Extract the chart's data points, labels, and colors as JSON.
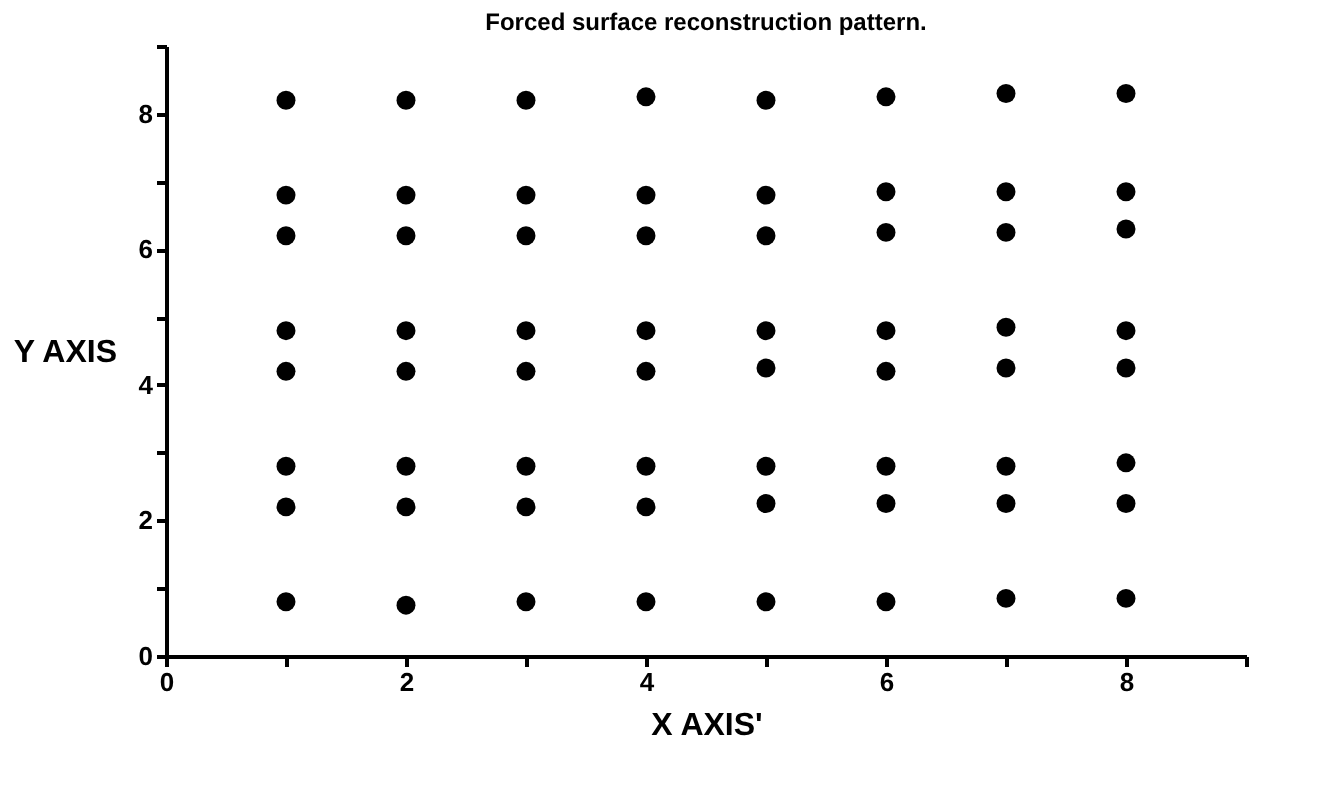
{
  "chart_data": {
    "type": "scatter",
    "title": "Forced surface reconstruction pattern.",
    "xlabel": "X AXIS'",
    "ylabel": "Y AXIS",
    "series": [
      {
        "color": "#000000",
        "x": [
          1,
          2,
          3,
          4,
          5,
          6,
          7,
          8,
          1,
          2,
          3,
          4,
          5,
          6,
          7,
          8,
          1,
          2,
          3,
          4,
          5,
          6,
          7,
          8,
          1,
          2,
          3,
          4,
          5,
          6,
          7,
          8,
          1,
          2,
          3,
          4,
          5,
          6,
          7,
          8,
          1,
          2,
          3,
          4,
          5,
          6,
          7,
          8,
          1,
          2,
          3,
          4,
          5,
          6,
          7,
          8,
          1,
          2,
          3,
          4,
          5,
          6,
          7,
          8
        ],
        "values": [
          0.8,
          0.75,
          0.8,
          0.8,
          0.8,
          0.8,
          0.85,
          0.85,
          2.2,
          2.2,
          2.2,
          2.2,
          2.25,
          2.25,
          2.25,
          2.25,
          2.8,
          2.8,
          2.8,
          2.8,
          2.8,
          2.8,
          2.8,
          2.85,
          4.2,
          4.2,
          4.2,
          4.2,
          4.25,
          4.2,
          4.25,
          4.25,
          4.8,
          4.8,
          4.8,
          4.8,
          4.8,
          4.8,
          4.85,
          4.8,
          6.2,
          6.2,
          6.2,
          6.2,
          6.2,
          6.25,
          6.25,
          6.3,
          6.8,
          6.8,
          6.8,
          6.8,
          6.8,
          6.85,
          6.85,
          6.85,
          8.2,
          8.2,
          8.2,
          8.25,
          8.2,
          8.25,
          8.3,
          8.3
        ]
      }
    ],
    "xlim": [
      0,
      9
    ],
    "ylim": [
      0,
      9
    ],
    "xticks": [
      0,
      {
        "value": 1,
        "label": null
      },
      2,
      {
        "value": 3,
        "label": null
      },
      4,
      {
        "value": 5,
        "label": null
      },
      6,
      {
        "value": 7,
        "label": null
      },
      8,
      {
        "value": 9,
        "label": null
      }
    ],
    "yticks": [
      0,
      {
        "value": 1,
        "label": null
      },
      2,
      {
        "value": 3,
        "label": null
      },
      4,
      {
        "value": 5,
        "label": null
      },
      6,
      {
        "value": 7,
        "label": null
      },
      8,
      {
        "value": 9,
        "label": null
      }
    ],
    "grid": false,
    "marker": "circle"
  }
}
